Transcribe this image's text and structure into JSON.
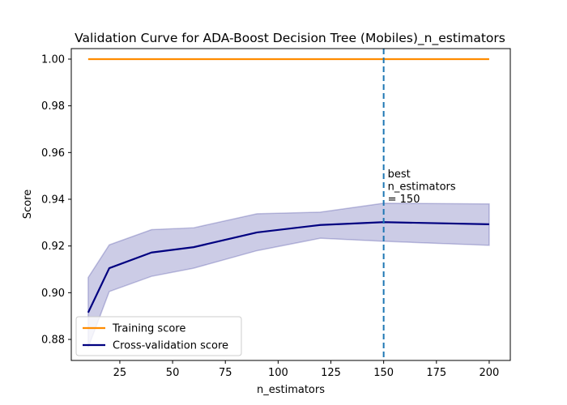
{
  "chart_data": {
    "type": "line",
    "title": "Validation Curve for ADA-Boost Decision Tree (Mobiles)_n_estimators",
    "xlabel": "n_estimators",
    "ylabel": "Score",
    "xlim": [
      2,
      210
    ],
    "ylim": [
      0.871,
      1.0045
    ],
    "xticks": [
      25,
      50,
      75,
      100,
      125,
      150,
      175,
      200
    ],
    "yticks": [
      0.88,
      0.9,
      0.92,
      0.94,
      0.96,
      0.98,
      1.0
    ],
    "x": [
      10,
      20,
      40,
      60,
      90,
      120,
      150,
      200
    ],
    "series": [
      {
        "name": "Training score",
        "color": "#ff8c00",
        "values": [
          1.0,
          1.0,
          1.0,
          1.0,
          1.0,
          1.0,
          1.0,
          1.0
        ]
      },
      {
        "name": "Cross-validation score",
        "color": "#000080",
        "values": [
          0.8915,
          0.9105,
          0.9172,
          0.9195,
          0.9258,
          0.929,
          0.9302,
          0.9293
        ],
        "band_upper": [
          0.9065,
          0.9205,
          0.927,
          0.9278,
          0.9338,
          0.9345,
          0.9383,
          0.938
        ],
        "band_lower": [
          0.8765,
          0.9005,
          0.907,
          0.9105,
          0.918,
          0.9233,
          0.922,
          0.9203
        ],
        "band_color": "#000080"
      }
    ],
    "vline": {
      "x": 150,
      "color": "#1f77b4",
      "label_lines": [
        "best",
        "n_estimators",
        "= 150"
      ]
    },
    "legend_position": "lower left",
    "grid": false
  }
}
